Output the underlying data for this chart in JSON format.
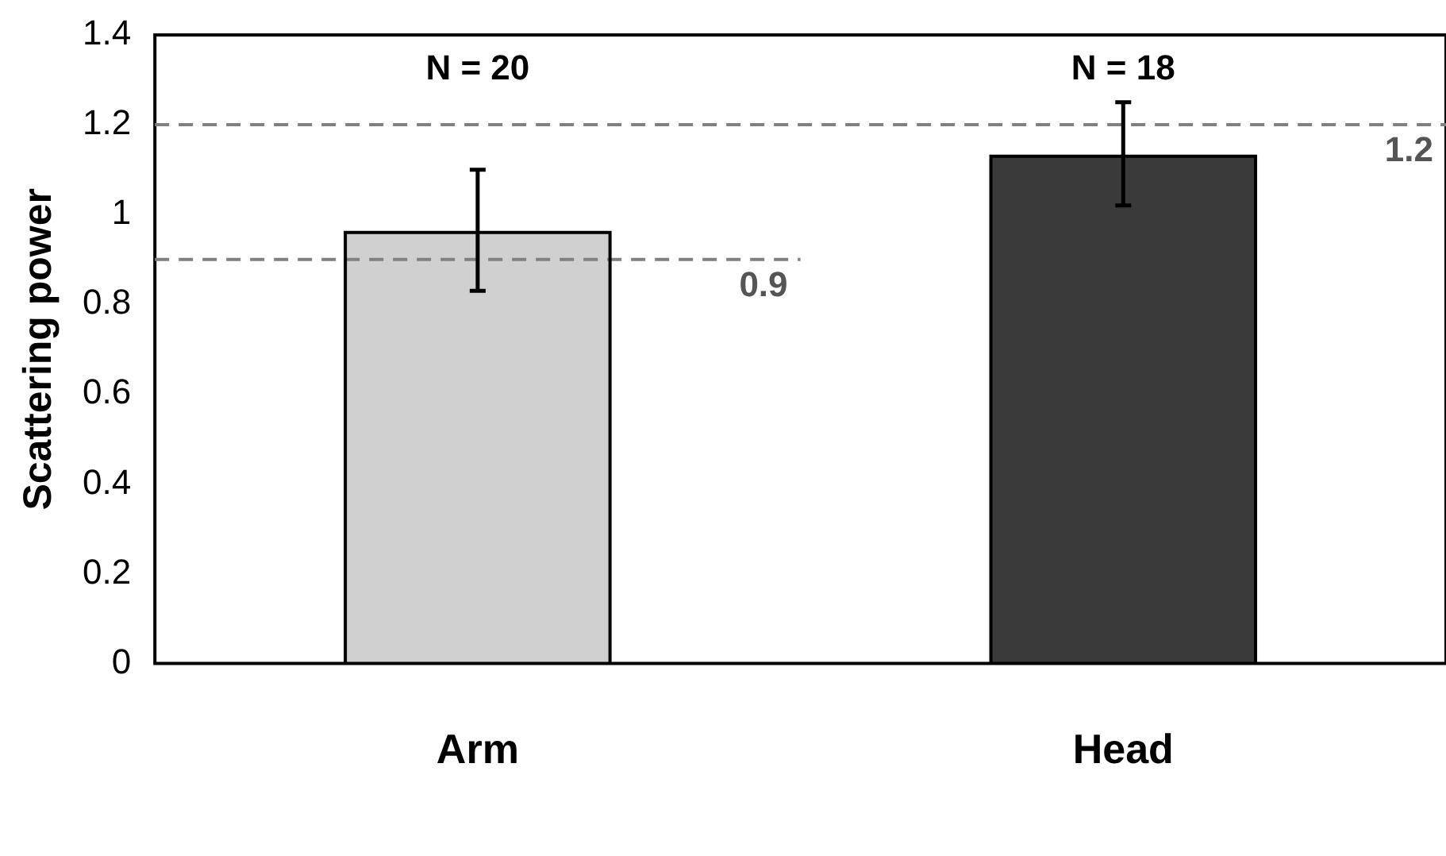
{
  "chart_data": {
    "type": "bar",
    "ylabel": "Scattering power",
    "categories": [
      "Arm",
      "Head"
    ],
    "values": [
      0.96,
      1.13
    ],
    "colors": [
      "#d0d0d0",
      "#3a3a3a"
    ],
    "errors": [
      [
        0.83,
        1.1
      ],
      [
        1.02,
        1.25
      ]
    ],
    "ylim": [
      0,
      1.4
    ],
    "yticks": [
      0,
      0.2,
      0.4,
      0.6,
      0.8,
      1,
      1.2,
      1.4
    ],
    "grid": false,
    "legend": false,
    "ref_lines": [
      {
        "axis": "y",
        "value": 0.9,
        "label": "0.9",
        "color": "#808080",
        "line_style": "dashed"
      },
      {
        "axis": "y",
        "value": 1.2,
        "label": "1.2",
        "color": "#808080",
        "line_style": "dashed"
      }
    ],
    "annotations": [
      "N = 20",
      "N = 18"
    ]
  }
}
